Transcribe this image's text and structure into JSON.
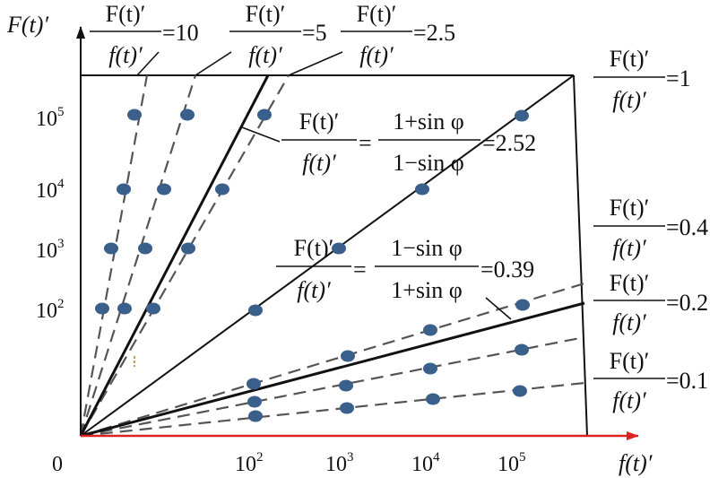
{
  "axes": {
    "origin_label": "0",
    "y_label": "F(t)′",
    "x_label": "f(t)′",
    "y_ticks": [
      {
        "base": "10",
        "exp": "5"
      },
      {
        "base": "10",
        "exp": "4"
      },
      {
        "base": "10",
        "exp": "3"
      },
      {
        "base": "10",
        "exp": "2"
      }
    ],
    "x_ticks": [
      {
        "base": "10",
        "exp": "2"
      },
      {
        "base": "10",
        "exp": "3"
      },
      {
        "base": "10",
        "exp": "4"
      },
      {
        "base": "10",
        "exp": "5"
      }
    ],
    "x_axis_color": "#dd2222",
    "y_axis_color": "#111111"
  },
  "ratio": {
    "numerator": "F(t)′",
    "denominator": "f(t)′"
  },
  "lines": [
    {
      "id": "r10",
      "value": "=10"
    },
    {
      "id": "r5",
      "value": "=5"
    },
    {
      "id": "r2_5",
      "value": "=2.5"
    },
    {
      "id": "r1",
      "value": "=1"
    },
    {
      "id": "r0_4",
      "value": "=0.4"
    },
    {
      "id": "r0_2",
      "value": "=0.2"
    },
    {
      "id": "r0_1",
      "value": "=0.1"
    }
  ],
  "formulas": {
    "upper": {
      "num": "1+sin φ",
      "den": "1−sin φ",
      "value": "=2.52"
    },
    "lower": {
      "num": "1−sin φ",
      "den": "1+sin φ",
      "value": "=0.39"
    }
  },
  "colors": {
    "point": "#3a5f8a",
    "dash": "#555555",
    "solid": "#111111"
  }
}
